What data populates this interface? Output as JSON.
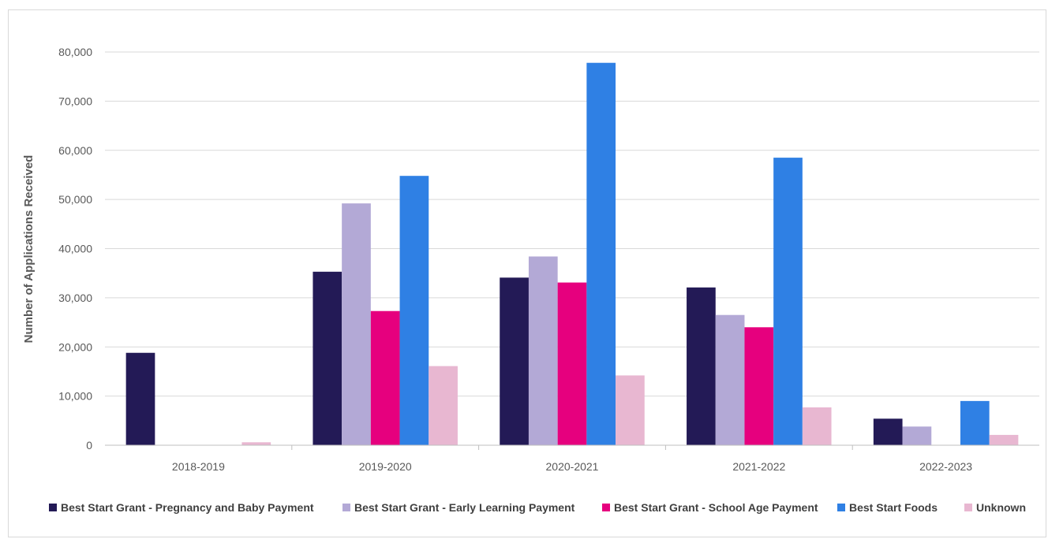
{
  "chart_data": {
    "type": "bar",
    "title": "",
    "xlabel": "",
    "ylabel": "Number  of Applications Received",
    "ylim": [
      0,
      80000
    ],
    "yticks": [
      0,
      10000,
      20000,
      30000,
      40000,
      50000,
      60000,
      70000,
      80000
    ],
    "ytick_labels": [
      "0",
      "10,000",
      "20,000",
      "30,000",
      "40,000",
      "50,000",
      "60,000",
      "70,000",
      "80,000"
    ],
    "categories": [
      "2018-2019",
      "2019-2020",
      "2020-2021",
      "2021-2022",
      "2022-2023"
    ],
    "grid": true,
    "legend_position": "bottom",
    "series": [
      {
        "name": "Best Start Grant - Pregnancy and Baby Payment",
        "color": "#231a56",
        "values": [
          18800,
          35300,
          34100,
          32100,
          5400
        ]
      },
      {
        "name": "Best Start Grant - Early Learning Payment",
        "color": "#b3a9d6",
        "values": [
          0,
          49200,
          38400,
          26500,
          3800
        ]
      },
      {
        "name": "Best Start Grant - School Age Payment",
        "color": "#e6007e",
        "values": [
          0,
          27300,
          33100,
          24000,
          0
        ]
      },
      {
        "name": "Best Start Foods",
        "color": "#2f80e4",
        "values": [
          0,
          54800,
          77800,
          58500,
          9000
        ]
      },
      {
        "name": "Unknown",
        "color": "#e8b7d1",
        "values": [
          600,
          16100,
          14200,
          7700,
          2100
        ]
      }
    ]
  }
}
